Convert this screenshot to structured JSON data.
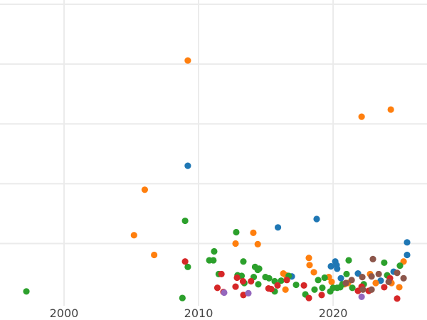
{
  "chart_data": {
    "type": "scatter",
    "title": "",
    "xlabel": "",
    "ylabel": "",
    "xlim": [
      1995.24,
      2026.98
    ],
    "ylim": [
      -0.04,
      5.0
    ],
    "xticks": [
      2000,
      2010,
      2020
    ],
    "xtick_labels": [
      "2000",
      "2010",
      "2020"
    ],
    "ygrid": [
      1,
      2,
      3,
      4,
      5
    ],
    "grid": true,
    "legend": "none",
    "series": [
      {
        "name": "blue",
        "color": "#1f77b4",
        "points": [
          [
            2009.2,
            2.3
          ],
          [
            2015.9,
            1.27
          ],
          [
            2018.78,
            1.41
          ],
          [
            2025.5,
            1.02
          ],
          [
            2025.5,
            0.81
          ],
          [
            2016.93,
            0.45
          ],
          [
            2019.84,
            0.62
          ],
          [
            2020.16,
            0.7
          ],
          [
            2020.26,
            0.64
          ],
          [
            2020.3,
            0.58
          ],
          [
            2020.58,
            0.42
          ],
          [
            2021.85,
            0.5
          ],
          [
            2023.54,
            0.38
          ],
          [
            2024.5,
            0.53
          ]
        ]
      },
      {
        "name": "orange",
        "color": "#ff7f0e",
        "points": [
          [
            2009.2,
            4.06
          ],
          [
            2006.0,
            1.9
          ],
          [
            2005.2,
            1.14
          ],
          [
            2006.7,
            0.81
          ],
          [
            2022.12,
            3.12
          ],
          [
            2024.29,
            3.24
          ],
          [
            2012.75,
            1.0
          ],
          [
            2014.07,
            1.18
          ],
          [
            2014.4,
            0.99
          ],
          [
            2016.3,
            0.5
          ],
          [
            2016.5,
            0.47
          ],
          [
            2016.46,
            0.23
          ],
          [
            2018.2,
            0.76
          ],
          [
            2018.25,
            0.64
          ],
          [
            2018.57,
            0.52
          ],
          [
            2019.68,
            0.44
          ],
          [
            2019.89,
            0.36
          ],
          [
            2020.85,
            0.32
          ],
          [
            2021.1,
            0.34
          ],
          [
            2022.75,
            0.49
          ],
          [
            2023.17,
            0.34
          ],
          [
            2024.34,
            0.34
          ],
          [
            2024.92,
            0.27
          ],
          [
            2025.24,
            0.7
          ]
        ]
      },
      {
        "name": "green",
        "color": "#2ca02c",
        "points": [
          [
            1997.2,
            0.2
          ],
          [
            2009.0,
            1.38
          ],
          [
            2009.2,
            0.61
          ],
          [
            2008.8,
            0.09
          ],
          [
            2012.8,
            1.19
          ],
          [
            2011.16,
            0.87
          ],
          [
            2010.8,
            0.72
          ],
          [
            2011.1,
            0.72
          ],
          [
            2013.33,
            0.7
          ],
          [
            2011.5,
            0.49
          ],
          [
            2012.9,
            0.47
          ],
          [
            2013.2,
            0.46
          ],
          [
            2013.4,
            0.34
          ],
          [
            2014.1,
            0.44
          ],
          [
            2014.2,
            0.61
          ],
          [
            2014.4,
            0.56
          ],
          [
            2014.5,
            0.58
          ],
          [
            2014.44,
            0.32
          ],
          [
            2014.97,
            0.44
          ],
          [
            2015.24,
            0.42
          ],
          [
            2015.66,
            0.37
          ],
          [
            2015.66,
            0.2
          ],
          [
            2016.14,
            0.38
          ],
          [
            2016.7,
            0.46
          ],
          [
            2017.25,
            0.31
          ],
          [
            2017.94,
            0.15
          ],
          [
            2018.62,
            0.23
          ],
          [
            2018.89,
            0.39
          ],
          [
            2019.2,
            0.26
          ],
          [
            2019.37,
            0.43
          ],
          [
            2019.79,
            0.2
          ],
          [
            2020.0,
            0.26
          ],
          [
            2020.3,
            0.26
          ],
          [
            2020.53,
            0.27
          ],
          [
            2020.69,
            0.32
          ],
          [
            2021.0,
            0.49
          ],
          [
            2021.16,
            0.72
          ],
          [
            2021.43,
            0.26
          ],
          [
            2022.28,
            0.32
          ],
          [
            2023.8,
            0.68
          ],
          [
            2024.02,
            0.47
          ],
          [
            2024.97,
            0.63
          ]
        ]
      },
      {
        "name": "red",
        "color": "#d62728",
        "points": [
          [
            2009.0,
            0.7
          ],
          [
            2011.7,
            0.49
          ],
          [
            2011.4,
            0.26
          ],
          [
            2011.85,
            0.19
          ],
          [
            2012.86,
            0.43
          ],
          [
            2013.3,
            0.37
          ],
          [
            2012.75,
            0.28
          ],
          [
            2013.33,
            0.14
          ],
          [
            2013.9,
            0.37
          ],
          [
            2015.2,
            0.25
          ],
          [
            2015.4,
            0.24
          ],
          [
            2015.87,
            0.3
          ],
          [
            2016.56,
            0.39
          ],
          [
            2017.83,
            0.3
          ],
          [
            2018.2,
            0.09
          ],
          [
            2019.15,
            0.14
          ],
          [
            2021.85,
            0.21
          ],
          [
            2022.12,
            0.28
          ],
          [
            2022.65,
            0.21
          ],
          [
            2023.8,
            0.27
          ],
          [
            2024.23,
            0.42
          ],
          [
            2024.76,
            0.08
          ]
        ]
      },
      {
        "name": "purple",
        "color": "#9467bd",
        "points": [
          [
            2011.9,
            0.18
          ],
          [
            2013.7,
            0.17
          ],
          [
            2022.12,
            0.11
          ]
        ]
      },
      {
        "name": "brown",
        "color": "#8c564b",
        "points": [
          [
            2020.95,
            0.34
          ],
          [
            2021.38,
            0.39
          ],
          [
            2022.17,
            0.44
          ],
          [
            2022.22,
            0.23
          ],
          [
            2022.96,
            0.74
          ],
          [
            2022.86,
            0.45
          ],
          [
            2022.86,
            0.23
          ],
          [
            2023.39,
            0.49
          ],
          [
            2024.13,
            0.36
          ],
          [
            2024.76,
            0.51
          ],
          [
            2025.24,
            0.42
          ]
        ]
      }
    ]
  }
}
